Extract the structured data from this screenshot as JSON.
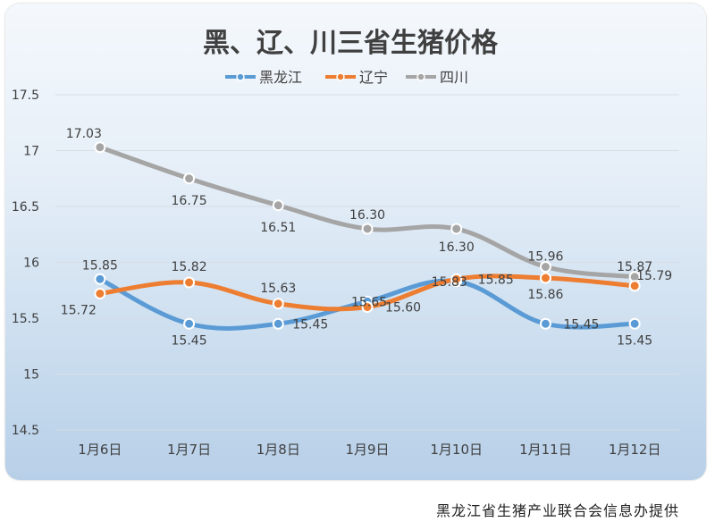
{
  "chart_data": {
    "type": "line",
    "title": "黑、辽、川三省生猪价格",
    "categories": [
      "1月6日",
      "1月7日",
      "1月8日",
      "1月9日",
      "1月10日",
      "1月11日",
      "1月12日"
    ],
    "ylim": [
      14.5,
      17.5
    ],
    "yticks": [
      "14.5",
      "15",
      "15.5",
      "16",
      "16.5",
      "17",
      "17.5"
    ],
    "grid": true,
    "legend": "top-center",
    "series": [
      {
        "name": "黑龙江",
        "color": "#5b9bd5",
        "values": [
          15.85,
          15.45,
          15.45,
          15.65,
          15.83,
          15.45,
          15.45
        ],
        "labels": [
          "15.85",
          "15.45",
          "15.45",
          "15.65",
          "15.83",
          "15.45",
          "15.45"
        ]
      },
      {
        "name": "辽宁",
        "color": "#ed7d31",
        "values": [
          15.72,
          15.82,
          15.63,
          15.6,
          15.85,
          15.86,
          15.79
        ],
        "labels": [
          "15.72",
          "15.82",
          "15.63",
          "15.60",
          "15.85",
          "15.86",
          "15.79"
        ]
      },
      {
        "name": "四川",
        "color": "#a5a5a5",
        "values": [
          17.03,
          16.75,
          16.51,
          16.3,
          16.3,
          15.96,
          15.87
        ],
        "labels": [
          "17.03",
          "16.75",
          "16.51",
          "16.30",
          "16.30",
          "15.96",
          "15.87"
        ]
      }
    ]
  },
  "footer": "黑龙江省生猪产业联合会信息办提供"
}
